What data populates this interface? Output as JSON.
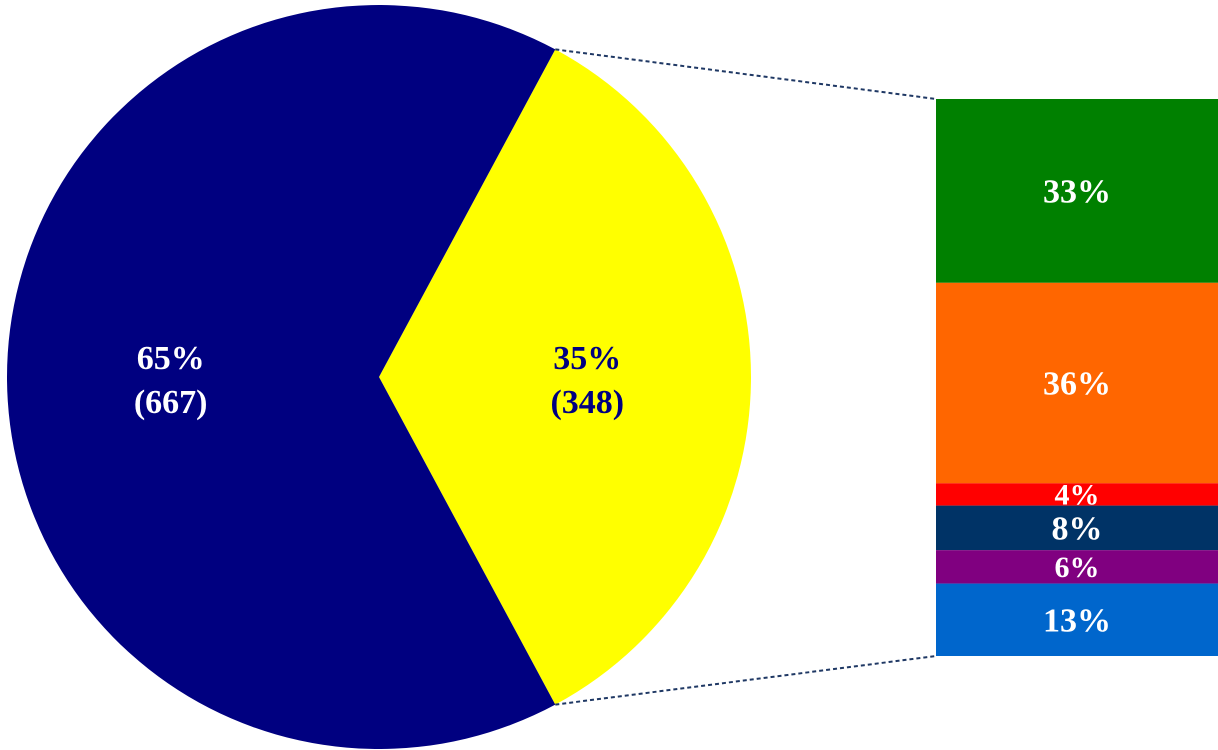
{
  "chart_data": {
    "type": "pie",
    "title": "",
    "pie": {
      "slices": [
        {
          "value": 667,
          "percent_label": "65%",
          "count_label": "(667)",
          "color": "#000080",
          "label_color": "#ffffff"
        },
        {
          "value": 348,
          "percent_label": "35%",
          "count_label": "(348)",
          "color": "#ffff00",
          "label_color": "#000080"
        }
      ],
      "exploded_slice_index": 1
    },
    "breakdown_bar": {
      "segments": [
        {
          "value": 33,
          "label": "33%",
          "color": "#008000"
        },
        {
          "value": 36,
          "label": "36%",
          "color": "#ff6600"
        },
        {
          "value": 4,
          "label": "4%",
          "color": "#ff0000"
        },
        {
          "value": 8,
          "label": "8%",
          "color": "#003366"
        },
        {
          "value": 6,
          "label": "6%",
          "color": "#800080"
        },
        {
          "value": 13,
          "label": "13%",
          "color": "#0066cc"
        }
      ],
      "label_color": "#ffffff"
    },
    "connector_style": "dashed",
    "connector_color": "#1f3864"
  }
}
